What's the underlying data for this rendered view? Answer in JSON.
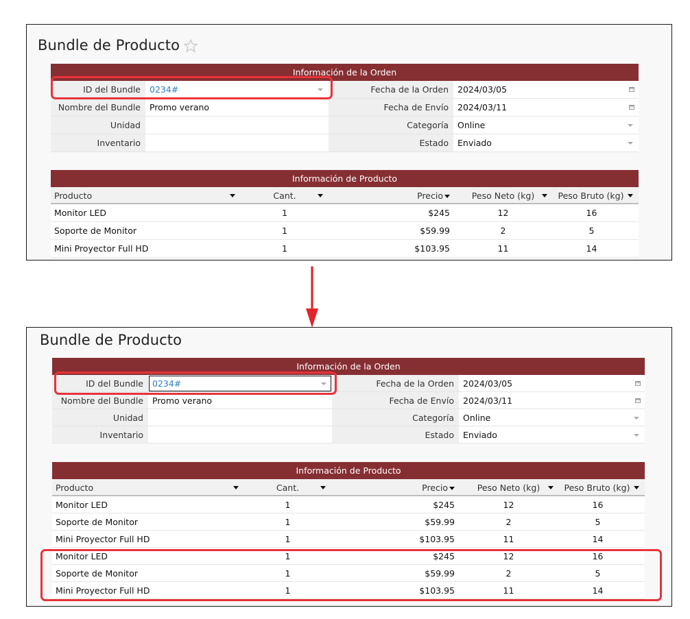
{
  "panels": [
    {
      "title": "Bundle de Producto",
      "order_section": {
        "header": "Información de la  Orden",
        "rows": [
          {
            "l1": "ID del Bundle",
            "v1": "0234#",
            "l2": "Fecha de la Orden",
            "v2": "2024/03/05"
          },
          {
            "l1": "Nombre del Bundle",
            "v1": "Promo verano",
            "l2": "Fecha de Envío",
            "v2": "2024/03/11"
          },
          {
            "l1": "Unidad",
            "v1": "",
            "l2": "Categoría",
            "v2": "Online"
          },
          {
            "l1": "Inventario",
            "v1": "",
            "l2": "Estado",
            "v2": "Enviado"
          }
        ]
      },
      "product_section": {
        "header": "Información de Producto",
        "columns": [
          "Producto",
          "Cant.",
          "Precio",
          "Peso Neto (kg)",
          "Peso Bruto (kg)"
        ],
        "rows": [
          [
            "Monitor LED",
            "1",
            "$245",
            "12",
            "16"
          ],
          [
            "Soporte de Monitor",
            "1",
            "$59.99",
            "2",
            "5"
          ],
          [
            "Mini Proyector Full HD",
            "1",
            "$103.95",
            "11",
            "14"
          ]
        ]
      }
    },
    {
      "title": "Bundle de Producto",
      "order_section": {
        "header": "Información de la  Orden",
        "rows": [
          {
            "l1": "ID del Bundle",
            "v1": "0234#",
            "l2": "Fecha de la Orden",
            "v2": "2024/03/05"
          },
          {
            "l1": "Nombre del Bundle",
            "v1": "Promo verano",
            "l2": "Fecha de Envío",
            "v2": "2024/03/11"
          },
          {
            "l1": "Unidad",
            "v1": "",
            "l2": "Categoría",
            "v2": "Online"
          },
          {
            "l1": "Inventario",
            "v1": "",
            "l2": "Estado",
            "v2": "Enviado"
          }
        ]
      },
      "product_section": {
        "header": "Información de Producto",
        "columns": [
          "Producto",
          "Cant.",
          "Precio",
          "Peso Neto (kg)",
          "Peso Bruto (kg)"
        ],
        "rows": [
          [
            "Monitor LED",
            "1",
            "$245",
            "12",
            "16"
          ],
          [
            "Soporte de Monitor",
            "1",
            "$59.99",
            "2",
            "5"
          ],
          [
            "Mini Proyector Full HD",
            "1",
            "$103.95",
            "11",
            "14"
          ],
          [
            "Monitor LED",
            "1",
            "$245",
            "12",
            "16"
          ],
          [
            "Soporte de Monitor",
            "1",
            "$59.99",
            "2",
            "5"
          ],
          [
            "Mini Proyector Full HD",
            "1",
            "$103.95",
            "11",
            "14"
          ]
        ]
      }
    }
  ],
  "colors": {
    "header_bg": "#862f33",
    "highlight": "#e8323a",
    "link": "#2f7fc1"
  },
  "icons": [
    "star-icon",
    "calendar-icon",
    "dropdown-caret-icon",
    "sort-caret-icon",
    "down-arrow-icon"
  ]
}
